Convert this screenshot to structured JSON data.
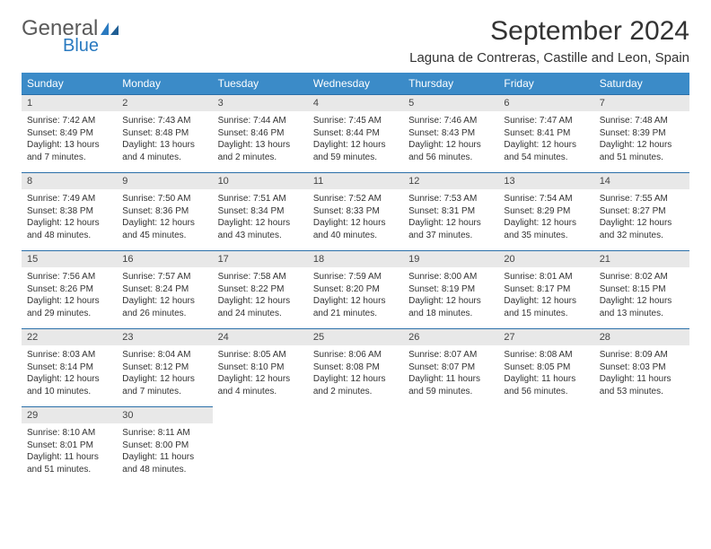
{
  "brand": {
    "name1": "General",
    "name2": "Blue"
  },
  "title": "September 2024",
  "location": "Laguna de Contreras, Castille and Leon, Spain",
  "colors": {
    "header_bg": "#3b8bc8",
    "header_text": "#ffffff",
    "daynum_bg": "#e8e8e8",
    "rule": "#2a6fa8",
    "body_text": "#333333",
    "logo_gray": "#5a5a5a",
    "logo_blue": "#2a7ac0"
  },
  "typography": {
    "title_fontsize": 30,
    "location_fontsize": 15,
    "dow_fontsize": 12,
    "daynum_fontsize": 11,
    "cell_fontsize": 10
  },
  "days_of_week": [
    "Sunday",
    "Monday",
    "Tuesday",
    "Wednesday",
    "Thursday",
    "Friday",
    "Saturday"
  ],
  "weeks": [
    [
      {
        "n": "1",
        "sunrise": "7:42 AM",
        "sunset": "8:49 PM",
        "daylight": "13 hours and 7 minutes."
      },
      {
        "n": "2",
        "sunrise": "7:43 AM",
        "sunset": "8:48 PM",
        "daylight": "13 hours and 4 minutes."
      },
      {
        "n": "3",
        "sunrise": "7:44 AM",
        "sunset": "8:46 PM",
        "daylight": "13 hours and 2 minutes."
      },
      {
        "n": "4",
        "sunrise": "7:45 AM",
        "sunset": "8:44 PM",
        "daylight": "12 hours and 59 minutes."
      },
      {
        "n": "5",
        "sunrise": "7:46 AM",
        "sunset": "8:43 PM",
        "daylight": "12 hours and 56 minutes."
      },
      {
        "n": "6",
        "sunrise": "7:47 AM",
        "sunset": "8:41 PM",
        "daylight": "12 hours and 54 minutes."
      },
      {
        "n": "7",
        "sunrise": "7:48 AM",
        "sunset": "8:39 PM",
        "daylight": "12 hours and 51 minutes."
      }
    ],
    [
      {
        "n": "8",
        "sunrise": "7:49 AM",
        "sunset": "8:38 PM",
        "daylight": "12 hours and 48 minutes."
      },
      {
        "n": "9",
        "sunrise": "7:50 AM",
        "sunset": "8:36 PM",
        "daylight": "12 hours and 45 minutes."
      },
      {
        "n": "10",
        "sunrise": "7:51 AM",
        "sunset": "8:34 PM",
        "daylight": "12 hours and 43 minutes."
      },
      {
        "n": "11",
        "sunrise": "7:52 AM",
        "sunset": "8:33 PM",
        "daylight": "12 hours and 40 minutes."
      },
      {
        "n": "12",
        "sunrise": "7:53 AM",
        "sunset": "8:31 PM",
        "daylight": "12 hours and 37 minutes."
      },
      {
        "n": "13",
        "sunrise": "7:54 AM",
        "sunset": "8:29 PM",
        "daylight": "12 hours and 35 minutes."
      },
      {
        "n": "14",
        "sunrise": "7:55 AM",
        "sunset": "8:27 PM",
        "daylight": "12 hours and 32 minutes."
      }
    ],
    [
      {
        "n": "15",
        "sunrise": "7:56 AM",
        "sunset": "8:26 PM",
        "daylight": "12 hours and 29 minutes."
      },
      {
        "n": "16",
        "sunrise": "7:57 AM",
        "sunset": "8:24 PM",
        "daylight": "12 hours and 26 minutes."
      },
      {
        "n": "17",
        "sunrise": "7:58 AM",
        "sunset": "8:22 PM",
        "daylight": "12 hours and 24 minutes."
      },
      {
        "n": "18",
        "sunrise": "7:59 AM",
        "sunset": "8:20 PM",
        "daylight": "12 hours and 21 minutes."
      },
      {
        "n": "19",
        "sunrise": "8:00 AM",
        "sunset": "8:19 PM",
        "daylight": "12 hours and 18 minutes."
      },
      {
        "n": "20",
        "sunrise": "8:01 AM",
        "sunset": "8:17 PM",
        "daylight": "12 hours and 15 minutes."
      },
      {
        "n": "21",
        "sunrise": "8:02 AM",
        "sunset": "8:15 PM",
        "daylight": "12 hours and 13 minutes."
      }
    ],
    [
      {
        "n": "22",
        "sunrise": "8:03 AM",
        "sunset": "8:14 PM",
        "daylight": "12 hours and 10 minutes."
      },
      {
        "n": "23",
        "sunrise": "8:04 AM",
        "sunset": "8:12 PM",
        "daylight": "12 hours and 7 minutes."
      },
      {
        "n": "24",
        "sunrise": "8:05 AM",
        "sunset": "8:10 PM",
        "daylight": "12 hours and 4 minutes."
      },
      {
        "n": "25",
        "sunrise": "8:06 AM",
        "sunset": "8:08 PM",
        "daylight": "12 hours and 2 minutes."
      },
      {
        "n": "26",
        "sunrise": "8:07 AM",
        "sunset": "8:07 PM",
        "daylight": "11 hours and 59 minutes."
      },
      {
        "n": "27",
        "sunrise": "8:08 AM",
        "sunset": "8:05 PM",
        "daylight": "11 hours and 56 minutes."
      },
      {
        "n": "28",
        "sunrise": "8:09 AM",
        "sunset": "8:03 PM",
        "daylight": "11 hours and 53 minutes."
      }
    ],
    [
      {
        "n": "29",
        "sunrise": "8:10 AM",
        "sunset": "8:01 PM",
        "daylight": "11 hours and 51 minutes."
      },
      {
        "n": "30",
        "sunrise": "8:11 AM",
        "sunset": "8:00 PM",
        "daylight": "11 hours and 48 minutes."
      },
      null,
      null,
      null,
      null,
      null
    ]
  ],
  "labels": {
    "sunrise": "Sunrise:",
    "sunset": "Sunset:",
    "daylight": "Daylight:"
  }
}
